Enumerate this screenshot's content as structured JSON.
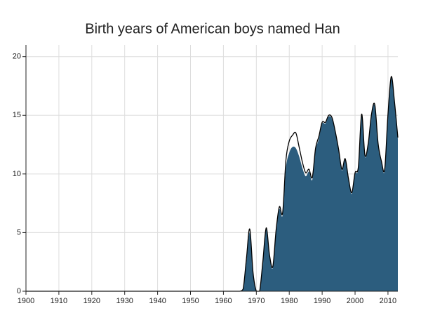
{
  "chart_data": {
    "type": "area",
    "title": "Birth years of American boys named Han",
    "x": [
      1900,
      1901,
      1902,
      1903,
      1904,
      1905,
      1906,
      1907,
      1908,
      1909,
      1910,
      1911,
      1912,
      1913,
      1914,
      1915,
      1916,
      1917,
      1918,
      1919,
      1920,
      1921,
      1922,
      1923,
      1924,
      1925,
      1926,
      1927,
      1928,
      1929,
      1930,
      1931,
      1932,
      1933,
      1934,
      1935,
      1936,
      1937,
      1938,
      1939,
      1940,
      1941,
      1942,
      1943,
      1944,
      1945,
      1946,
      1947,
      1948,
      1949,
      1950,
      1951,
      1952,
      1953,
      1954,
      1955,
      1956,
      1957,
      1958,
      1959,
      1960,
      1961,
      1962,
      1963,
      1964,
      1965,
      1966,
      1967,
      1968,
      1969,
      1970,
      1971,
      1972,
      1973,
      1974,
      1975,
      1976,
      1977,
      1978,
      1979,
      1980,
      1981,
      1982,
      1983,
      1984,
      1985,
      1986,
      1987,
      1988,
      1989,
      1990,
      1991,
      1992,
      1993,
      1994,
      1995,
      1996,
      1997,
      1998,
      1999,
      2000,
      2001,
      2002,
      2003,
      2004,
      2005,
      2006,
      2007,
      2008,
      2009,
      2010,
      2011,
      2012,
      2013
    ],
    "series": [
      {
        "color": "#2c5d7e",
        "style": "area",
        "values": [
          0,
          0,
          0,
          0,
          0,
          0,
          0,
          0,
          0,
          0,
          0,
          0,
          0,
          0,
          0,
          0,
          0,
          0,
          0,
          0,
          0,
          0,
          0,
          0,
          0,
          0,
          0,
          0,
          0,
          0,
          0,
          0,
          0,
          0,
          0,
          0,
          0,
          0,
          0,
          0,
          0,
          0,
          0,
          0,
          0,
          0,
          0,
          0,
          0,
          0,
          0,
          0,
          0,
          0,
          0,
          0,
          0,
          0,
          0,
          0,
          0,
          0,
          0,
          0,
          0,
          0,
          0.2,
          2.5,
          5.0,
          1.5,
          0,
          0,
          2.5,
          5.3,
          3.0,
          2.0,
          5.0,
          7.0,
          6.5,
          10.5,
          11.8,
          12.3,
          12.2,
          11.5,
          10.5,
          9.8,
          10.2,
          9.5,
          12.0,
          13.0,
          14.3,
          14.3,
          14.9,
          14.7,
          13.5,
          12.0,
          10.3,
          11.2,
          9.5,
          8.3,
          10.0,
          10.5,
          15.0,
          11.5,
          12.5,
          15.0,
          15.8,
          12.5,
          11.0,
          10.3,
          15.0,
          18.2,
          16.0,
          13.0
        ]
      },
      {
        "color": "#000000",
        "style": "line",
        "values": [
          0,
          0,
          0,
          0,
          0,
          0,
          0,
          0,
          0,
          0,
          0,
          0,
          0,
          0,
          0,
          0,
          0,
          0,
          0,
          0,
          0,
          0,
          0,
          0,
          0,
          0,
          0,
          0,
          0,
          0,
          0,
          0,
          0,
          0,
          0,
          0,
          0,
          0,
          0,
          0,
          0,
          0,
          0,
          0,
          0,
          0,
          0,
          0,
          0,
          0,
          0,
          0,
          0,
          0,
          0,
          0,
          0,
          0,
          0,
          0,
          0,
          0,
          0,
          0,
          0,
          0,
          0.2,
          2.8,
          5.3,
          1.6,
          0,
          0,
          2.6,
          5.4,
          3.1,
          2.1,
          5.2,
          7.2,
          6.7,
          11.2,
          12.8,
          13.3,
          13.5,
          12.3,
          11.0,
          10.1,
          10.4,
          9.7,
          12.2,
          13.2,
          14.4,
          14.4,
          15.0,
          14.8,
          13.6,
          12.1,
          10.4,
          11.3,
          9.6,
          8.4,
          10.1,
          10.6,
          15.1,
          11.6,
          12.6,
          15.1,
          15.9,
          12.6,
          11.1,
          10.4,
          15.1,
          18.3,
          16.1,
          13.1
        ]
      }
    ],
    "xlim": [
      1900,
      2013
    ],
    "xticks": [
      1900,
      1910,
      1920,
      1930,
      1940,
      1950,
      1960,
      1970,
      1980,
      1990,
      2000,
      2010
    ],
    "ylim": [
      0,
      21
    ],
    "yticks": [
      0,
      5,
      10,
      15,
      20
    ],
    "grid": true
  }
}
